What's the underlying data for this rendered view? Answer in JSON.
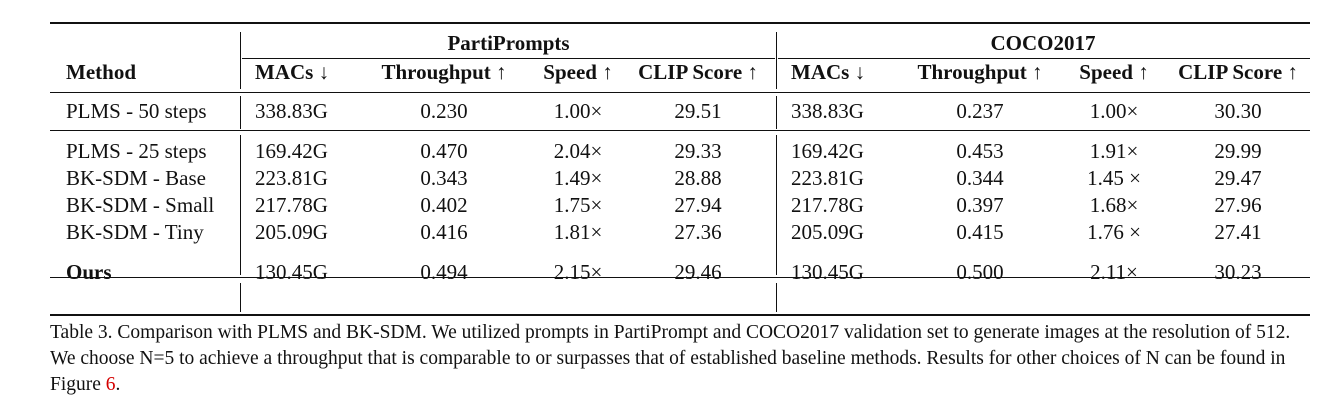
{
  "table": {
    "group_headers": [
      "PartiPrompts",
      "COCO2017"
    ],
    "columns": [
      "Method",
      "MACs ↓",
      "Throughput ↑",
      "Speed ↑",
      "CLIP Score ↑",
      "MACs ↓",
      "Throughput ↑",
      "Speed ↑",
      "CLIP Score ↑"
    ],
    "rows": [
      {
        "method": "PLMS - 50 steps",
        "values": [
          "338.83G",
          "0.230",
          "1.00×",
          "29.51",
          "338.83G",
          "0.237",
          "1.00×",
          "30.30"
        ],
        "bold": false
      },
      {
        "method": "PLMS - 25 steps",
        "values": [
          "169.42G",
          "0.470",
          "2.04×",
          "29.33",
          "169.42G",
          "0.453",
          "1.91×",
          "29.99"
        ],
        "bold": false
      },
      {
        "method": "BK-SDM - Base",
        "values": [
          "223.81G",
          "0.343",
          "1.49×",
          "28.88",
          "223.81G",
          "0.344",
          "1.45 ×",
          "29.47"
        ],
        "bold": false
      },
      {
        "method": "BK-SDM - Small",
        "values": [
          "217.78G",
          "0.402",
          "1.75×",
          "27.94",
          "217.78G",
          "0.397",
          "1.68×",
          "27.96"
        ],
        "bold": false
      },
      {
        "method": "BK-SDM - Tiny",
        "values": [
          "205.09G",
          "0.416",
          "1.81×",
          "27.36",
          "205.09G",
          "0.415",
          "1.76 ×",
          "27.41"
        ],
        "bold": false
      },
      {
        "method": "Ours",
        "values": [
          "130.45G",
          "0.494",
          "2.15×",
          "29.46",
          "130.45G",
          "0.500",
          "2.11×",
          "30.23"
        ],
        "bold": true
      }
    ]
  },
  "caption": {
    "text": "Table 3. Comparison with PLMS and BK-SDM. We utilized prompts in PartiPrompt and COCO2017 validation set to generate images at the resolution of 512. We choose N=5 to achieve a throughput that is comparable to or surpasses that of established baseline methods. Results for other choices of N can be found in Figure ",
    "ref": "6",
    "end": "."
  }
}
